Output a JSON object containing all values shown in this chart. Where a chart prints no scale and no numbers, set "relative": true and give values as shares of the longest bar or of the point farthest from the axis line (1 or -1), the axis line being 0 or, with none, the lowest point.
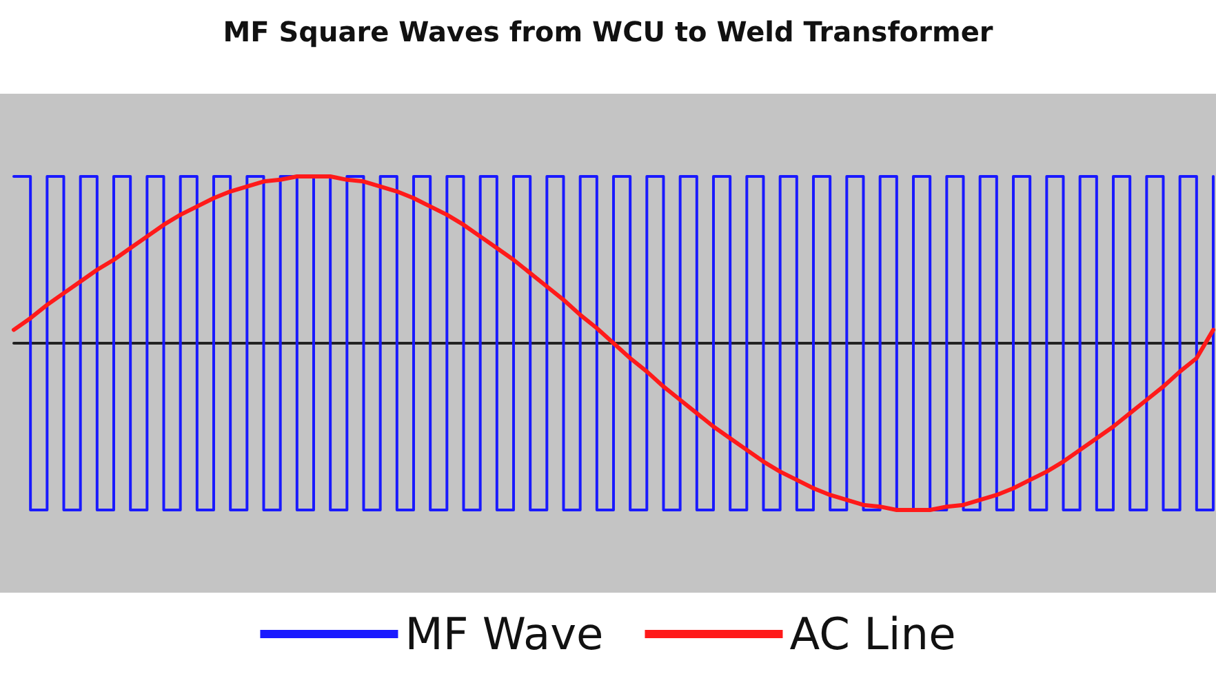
{
  "chart_data": {
    "type": "line",
    "title": "MF Square Waves from WCU to Weld Transformer",
    "relative": true,
    "legend": "bottom",
    "marker": "none",
    "line_style": "solid",
    "categories": [
      null,
      null,
      null,
      null,
      null,
      null,
      null,
      null,
      null,
      null,
      null,
      null,
      null,
      null,
      null,
      null,
      null,
      null,
      null,
      null,
      null,
      null,
      null,
      null,
      null,
      null,
      null,
      null,
      null,
      null,
      null,
      null,
      null,
      null,
      null,
      null,
      null,
      null,
      null,
      null,
      null,
      null,
      null,
      null,
      null,
      null,
      null,
      null,
      null,
      null,
      null,
      null,
      null,
      null,
      null,
      null,
      null,
      null,
      null,
      null,
      null,
      null,
      null,
      null,
      null,
      null,
      null,
      null,
      null,
      null,
      null,
      null,
      null
    ],
    "series": [
      {
        "name": "MF Wave",
        "type": "step",
        "color": "#1a1aff",
        "values": [
          1,
          -1,
          1,
          -1,
          1,
          -1,
          1,
          -1,
          1,
          -1,
          1,
          -1,
          1,
          -1,
          1,
          -1,
          1,
          -1,
          1,
          -1,
          1,
          -1,
          1,
          -1,
          1,
          -1,
          1,
          -1,
          1,
          -1,
          1,
          -1,
          1,
          -1,
          1,
          -1,
          1,
          -1,
          1,
          -1,
          1,
          -1,
          1,
          -1,
          1,
          -1,
          1,
          -1,
          1,
          -1,
          1,
          -1,
          1,
          -1,
          1,
          -1,
          1,
          -1,
          1,
          -1,
          1,
          -1,
          1,
          -1,
          1,
          -1,
          1,
          -1,
          1,
          -1,
          1,
          -1,
          1
        ]
      },
      {
        "name": "AC Line",
        "color": "#ff1a1a",
        "values": [
          0.08,
          0.15,
          0.23,
          0.3,
          0.37,
          0.44,
          0.5,
          0.57,
          0.64,
          0.71,
          0.77,
          0.82,
          0.87,
          0.91,
          0.94,
          0.97,
          0.98,
          1,
          1,
          1,
          0.98,
          0.97,
          0.94,
          0.91,
          0.87,
          0.82,
          0.77,
          0.71,
          0.64,
          0.57,
          0.5,
          0.42,
          0.34,
          0.26,
          0.17,
          0.09,
          0,
          -0.09,
          -0.17,
          -0.26,
          -0.34,
          -0.42,
          -0.5,
          -0.57,
          -0.64,
          -0.71,
          -0.77,
          -0.82,
          -0.87,
          -0.91,
          -0.94,
          -0.97,
          -0.98,
          -1,
          -1,
          -1,
          -0.98,
          -0.97,
          -0.94,
          -0.91,
          -0.87,
          -0.82,
          -0.77,
          -0.71,
          -0.64,
          -0.57,
          -0.5,
          -0.42,
          -0.34,
          -0.26,
          -0.17,
          -0.09,
          0.08
        ]
      }
    ]
  }
}
